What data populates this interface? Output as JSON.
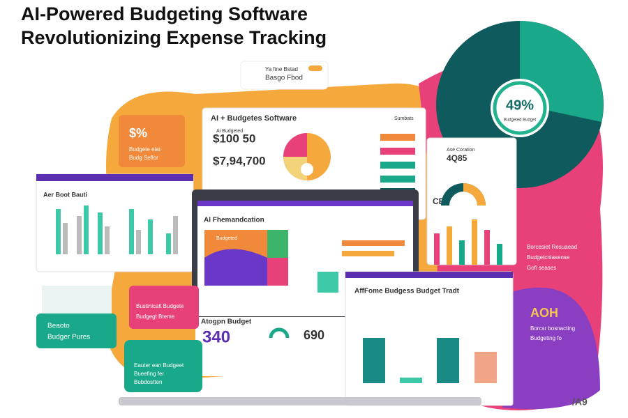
{
  "header": {
    "title_line_1": "AI-Powered Budgeting Software",
    "title_line_2": "Revolutionizing Expense Tracking"
  },
  "top_card": {
    "line_1": "Ya fine Bstad",
    "line_2": "Basgo Fbod"
  },
  "main_panel": {
    "title": "AI + Budgetes Software",
    "menu": "Sumbats",
    "caption": "Ai Budgeted",
    "amount_1": "$100 50",
    "amount_2": "$7,94,700"
  },
  "donut": {
    "label": "49%",
    "caption": "Budgeted Budget"
  },
  "side_card": {
    "symbol": "$%",
    "line_1": "Budgete elat",
    "line_2": "Budg Seflor"
  },
  "left_chart": {
    "title": "Aer Boot Bauti"
  },
  "small_panel": {
    "title": "Ase Coration",
    "value": "4Q85",
    "side": "CE"
  },
  "laptop": {
    "title": "AI Fhemandcation",
    "block_label": "Budgeted"
  },
  "budget_strip": {
    "title": "Atogpn Budget",
    "value_1": "340",
    "value_2": "690"
  },
  "bottom_panel": {
    "title": "AffFome Budgess Budget Tradt"
  },
  "pink_card": {
    "line_1": "Bustinicalt Budgete",
    "line_2": "Budgegt Bteme"
  },
  "teal_card": {
    "line_1": "Beaoto",
    "line_2": "Budger Pures"
  },
  "teal_card_2": {
    "line_1": "Eauter ean Budgeet",
    "line_2": "Bueefing fer",
    "line_3": "Bubdostten"
  },
  "right_text": {
    "line_1": "Borcesiet Resuaead",
    "line_2": "Budgetcnlasense",
    "line_3": "Gofi seases",
    "badge": "AOH",
    "line_4": "Borcsr bosnacting",
    "line_5": "Budgeting fo"
  },
  "corner": {
    "mark": "/A9"
  }
}
